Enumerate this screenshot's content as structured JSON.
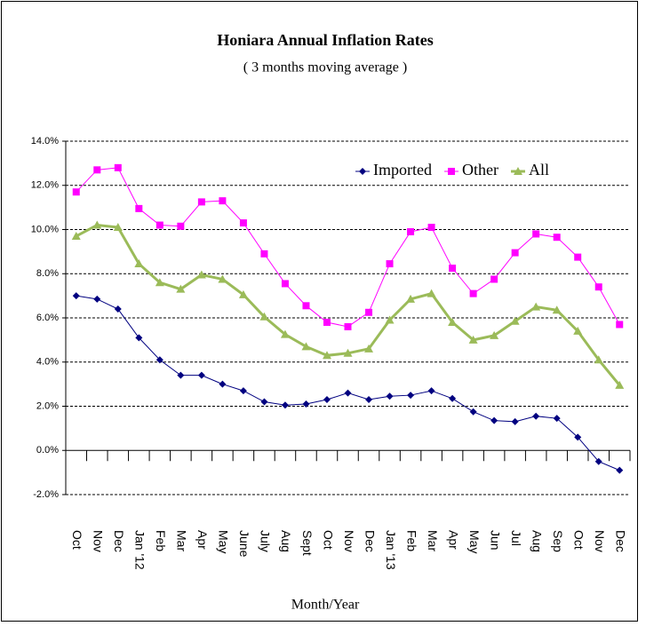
{
  "chart_data": {
    "type": "line",
    "title": "Honiara Annual Inflation Rates",
    "subtitle": "( 3 months moving average )",
    "x_label": "Month/Year",
    "categories": [
      "Oct",
      "Nov",
      "Dec",
      "Jan '12",
      "Feb",
      "Mar",
      "Apr",
      "May",
      "June",
      "July",
      "Aug",
      "Sept",
      "Oct",
      "Nov",
      "Dec",
      "Jan '13",
      "Feb",
      "Mar",
      "Apr",
      "May",
      "Jun",
      "Jul",
      "Aug",
      "Sep",
      "Oct",
      "Nov",
      "Dec"
    ],
    "series": [
      {
        "name": "Imported",
        "color": "#000080",
        "marker": "diamond",
        "width": 1,
        "values": [
          7.0,
          6.85,
          6.4,
          5.1,
          4.1,
          3.4,
          3.4,
          3.0,
          2.7,
          2.2,
          2.05,
          2.1,
          2.3,
          2.6,
          2.3,
          2.45,
          2.5,
          2.7,
          2.35,
          1.75,
          1.35,
          1.3,
          1.55,
          1.45,
          0.6,
          -0.5,
          -0.9
        ]
      },
      {
        "name": "Other",
        "color": "#ff00ff",
        "marker": "square",
        "width": 1,
        "values": [
          11.7,
          12.7,
          12.8,
          10.95,
          10.2,
          10.15,
          11.25,
          11.3,
          10.3,
          8.9,
          7.55,
          6.55,
          5.8,
          5.6,
          6.25,
          8.45,
          9.9,
          10.1,
          8.25,
          7.1,
          7.75,
          8.95,
          9.8,
          9.65,
          8.75,
          7.4,
          5.7
        ]
      },
      {
        "name": "All",
        "color": "#9bbb59",
        "marker": "triangle",
        "width": 3,
        "values": [
          9.7,
          10.2,
          10.1,
          8.45,
          7.6,
          7.3,
          7.95,
          7.75,
          7.05,
          6.05,
          5.25,
          4.7,
          4.3,
          4.4,
          4.6,
          5.9,
          6.85,
          7.1,
          5.8,
          5.0,
          5.2,
          5.85,
          6.5,
          6.35,
          5.4,
          4.1,
          2.95
        ]
      }
    ],
    "ylim": [
      -2,
      14
    ],
    "yticks": [
      {
        "value": -2,
        "label": "-2.0%"
      },
      {
        "value": 0,
        "label": "0.0%"
      },
      {
        "value": 2,
        "label": "2.0%"
      },
      {
        "value": 4,
        "label": "4.0%"
      },
      {
        "value": 6,
        "label": "6.0%"
      },
      {
        "value": 8,
        "label": "8.0%"
      },
      {
        "value": 10,
        "label": "10.0%"
      },
      {
        "value": 12,
        "label": "12.0%"
      },
      {
        "value": 14,
        "label": "14.0%"
      }
    ],
    "grid": true,
    "legend": "upper right"
  }
}
